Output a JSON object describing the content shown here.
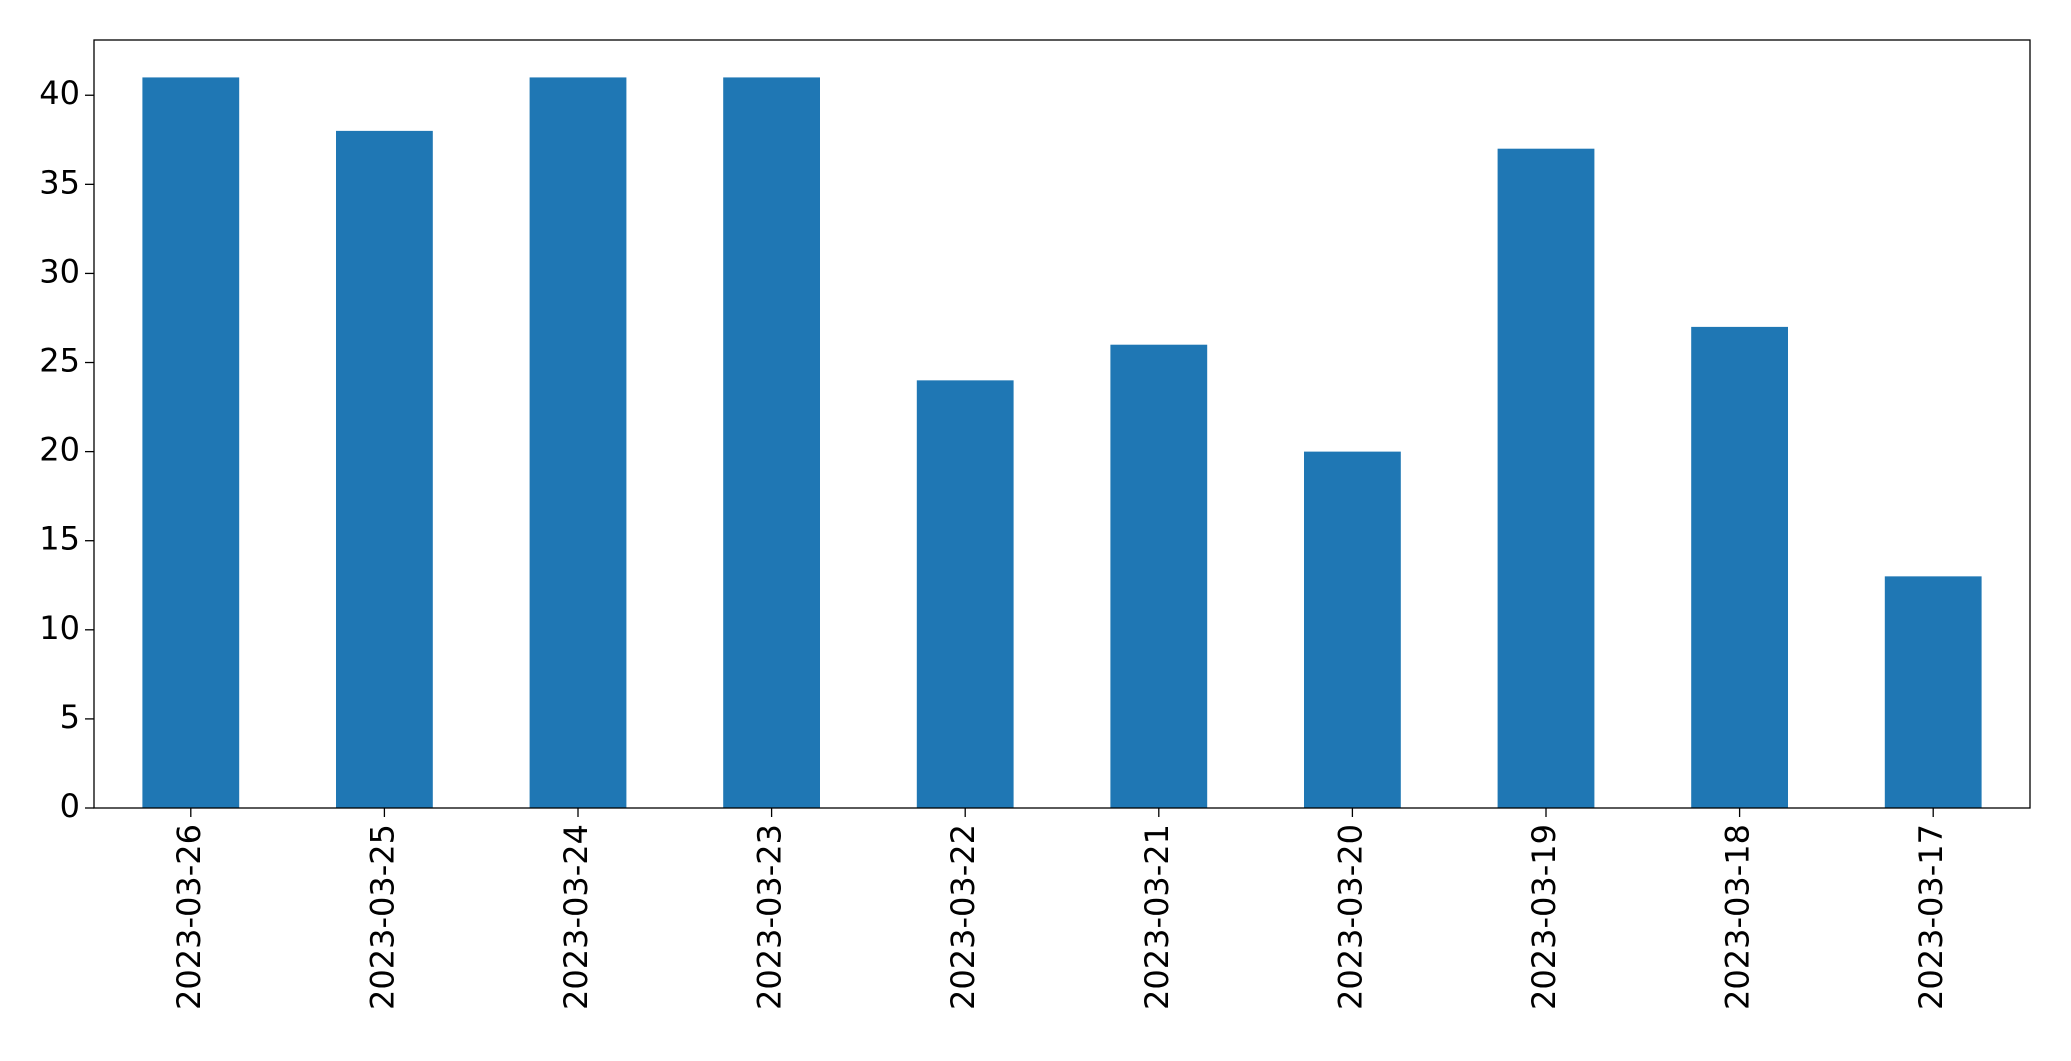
{
  "chart_data": {
    "type": "bar",
    "categories": [
      "2023-03-26",
      "2023-03-25",
      "2023-03-24",
      "2023-03-23",
      "2023-03-22",
      "2023-03-21",
      "2023-03-20",
      "2023-03-19",
      "2023-03-18",
      "2023-03-17"
    ],
    "values": [
      41,
      38,
      41,
      41,
      24,
      26,
      20,
      37,
      27,
      13
    ],
    "color": "#1f77b4",
    "ylim": [
      0,
      43.1
    ],
    "yticks": [
      0,
      5,
      10,
      15,
      20,
      25,
      30,
      35,
      40
    ],
    "grid": false
  }
}
